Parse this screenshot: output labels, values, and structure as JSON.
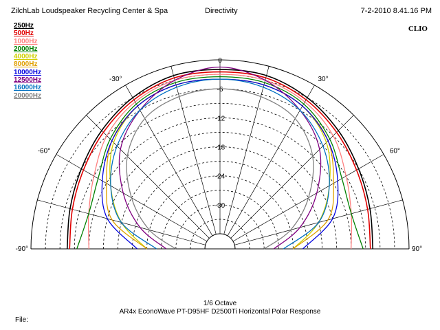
{
  "header": {
    "left": "ZilchLab Loudspeaker Recycling Center & Spa",
    "center": "Directivity",
    "right": "7-2-2010 8.41.16 PM",
    "brand": "CLIO"
  },
  "footer": {
    "line1": "1/6 Octave",
    "line2": "AR4x EconoWave PT-D95HF D2500Ti Horizontal Polar Response",
    "file_label": "File:"
  },
  "chart_data": {
    "type": "polar",
    "title": "Directivity",
    "radial_labels": [
      "0",
      "-6",
      "-12",
      "-18",
      "-24",
      "-30"
    ],
    "radial_range_db": [
      -36,
      0
    ],
    "angle_range_deg": [
      -90,
      90
    ],
    "angle_labels": [
      "-90°",
      "-60°",
      "-30°",
      "30°",
      "60°",
      "90°"
    ],
    "grid": true,
    "legend_position": "top-left",
    "angles_deg": [
      -90,
      -75,
      -60,
      -45,
      -30,
      -15,
      0,
      15,
      30,
      45,
      60,
      75,
      90
    ],
    "series": [
      {
        "name": "250Hz",
        "color": "#000000",
        "values_db": [
          -7.5,
          -7.0,
          -6.0,
          -4.5,
          -3.0,
          -2.0,
          -2.0,
          -2.0,
          -3.0,
          -4.5,
          -6.0,
          -7.0,
          -7.5
        ]
      },
      {
        "name": "500Hz",
        "color": "#e00000",
        "values_db": [
          -8.0,
          -7.5,
          -6.5,
          -5.0,
          -3.5,
          -2.5,
          -2.5,
          -2.5,
          -3.5,
          -5.0,
          -6.5,
          -7.5,
          -8.0
        ]
      },
      {
        "name": "1000Hz",
        "color": "#ff8080",
        "values_db": [
          -12.0,
          -11.0,
          -9.0,
          -6.0,
          -4.0,
          -3.0,
          -3.0,
          -3.0,
          -4.0,
          -6.0,
          -9.0,
          -11.0,
          -12.0
        ]
      },
      {
        "name": "2000Hz",
        "color": "#008000",
        "values_db": [
          -9.5,
          -11.0,
          -10.0,
          -7.0,
          -4.5,
          -3.5,
          -3.5,
          -3.5,
          -4.5,
          -7.0,
          -10.0,
          -11.0,
          -9.5
        ]
      },
      {
        "name": "4000Hz",
        "color": "#d0d000",
        "values_db": [
          -24.0,
          -18.0,
          -13.0,
          -8.0,
          -5.0,
          -4.0,
          -4.0,
          -4.0,
          -5.0,
          -8.0,
          -13.0,
          -18.0,
          -24.0
        ]
      },
      {
        "name": "8000Hz",
        "color": "#e0a000",
        "values_db": [
          -24.0,
          -16.0,
          -12.0,
          -7.5,
          -5.0,
          -4.0,
          -4.0,
          -4.0,
          -5.0,
          -7.5,
          -12.0,
          -16.0,
          -24.0
        ]
      },
      {
        "name": "10000Hz",
        "color": "#0000e0",
        "values_db": [
          -22.0,
          -15.0,
          -11.0,
          -7.5,
          -5.0,
          -4.0,
          -4.0,
          -4.0,
          -5.0,
          -7.5,
          -11.0,
          -15.0,
          -22.0
        ]
      },
      {
        "name": "12500Hz",
        "color": "#800080",
        "values_db": [
          -28.0,
          -22.0,
          -16.0,
          -10.0,
          -6.0,
          -3.0,
          -1.5,
          -3.0,
          -6.0,
          -10.0,
          -16.0,
          -22.0,
          -28.0
        ]
      },
      {
        "name": "16000Hz",
        "color": "#0070c0",
        "values_db": [
          -26.0,
          -18.0,
          -13.0,
          -9.0,
          -6.0,
          -4.5,
          -4.0,
          -4.5,
          -6.0,
          -9.0,
          -13.0,
          -18.0,
          -26.0
        ]
      },
      {
        "name": "20000Hz",
        "color": "#808080",
        "values_db": [
          -30.0,
          -24.0,
          -18.0,
          -12.0,
          -8.0,
          -6.5,
          -6.0,
          -6.5,
          -8.0,
          -12.0,
          -18.0,
          -24.0,
          -30.0
        ]
      }
    ]
  }
}
